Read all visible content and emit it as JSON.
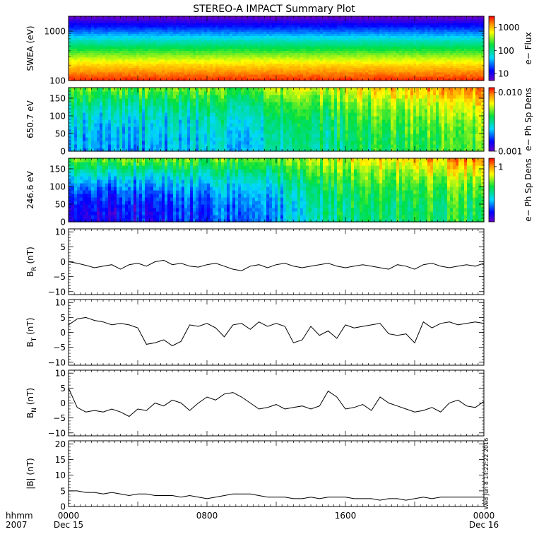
{
  "title": "STEREO-A IMPACT Summary Plot",
  "stamp": "Wed Jun  8 14:22:22 2016",
  "time_axis": {
    "unit_label": "hhmm",
    "year_label": "2007",
    "ticks": [
      {
        "hour": 0,
        "label": "0000",
        "date": "Dec 15"
      },
      {
        "hour": 8,
        "label": "0800",
        "date": ""
      },
      {
        "hour": 16,
        "label": "1600",
        "date": ""
      },
      {
        "hour": 24,
        "label": "0000",
        "date": "Dec 16"
      }
    ],
    "range_hours": [
      0,
      24
    ]
  },
  "chart_data": [
    {
      "type": "heatmap",
      "ylabel": "SWEA (eV)",
      "y_scale": "log",
      "ylim": [
        100,
        2000
      ],
      "yticks": [
        {
          "v": 100,
          "label": "100"
        },
        {
          "v": 1000,
          "label": "1000"
        }
      ],
      "colorbar": {
        "label": "e− Flux",
        "scale": "log",
        "range": [
          5,
          3000
        ],
        "ticks": [
          {
            "v": 10,
            "label": "10"
          },
          {
            "v": 100,
            "label": "100"
          },
          {
            "v": 1000,
            "label": "1000"
          }
        ]
      },
      "profile": [
        {
          "energy": 100,
          "flux": 2500
        },
        {
          "energy": 200,
          "flux": 900
        },
        {
          "energy": 400,
          "flux": 220
        },
        {
          "energy": 700,
          "flux": 60
        },
        {
          "energy": 1000,
          "flux": 25
        },
        {
          "energy": 1500,
          "flux": 10
        },
        {
          "energy": 2000,
          "flux": 5
        }
      ]
    },
    {
      "type": "heatmap",
      "ylabel": "650.7 eV",
      "ylim": [
        0,
        180
      ],
      "yticks": [
        {
          "v": 0,
          "label": "0"
        },
        {
          "v": 50,
          "label": "50"
        },
        {
          "v": 100,
          "label": "100"
        },
        {
          "v": 150,
          "label": "150"
        }
      ],
      "colorbar": {
        "label": "e− Ph Sp Dens",
        "scale": "log",
        "range": [
          0.001,
          0.012
        ],
        "ticks": [
          {
            "v": 0.001,
            "label": "0.001"
          },
          {
            "v": 0.01,
            "label": "0.010"
          }
        ]
      },
      "pattern": [
        {
          "hour": 0,
          "low": 0.3,
          "high": 0.62
        },
        {
          "hour": 6,
          "low": 0.32,
          "high": 0.62
        },
        {
          "hour": 12,
          "low": 0.4,
          "high": 0.66
        },
        {
          "hour": 18,
          "low": 0.55,
          "high": 0.8
        },
        {
          "hour": 24,
          "low": 0.6,
          "high": 0.9
        }
      ]
    },
    {
      "type": "heatmap",
      "ylabel": "246.6 eV",
      "ylim": [
        0,
        180
      ],
      "yticks": [
        {
          "v": 0,
          "label": "0"
        },
        {
          "v": 50,
          "label": "50"
        },
        {
          "v": 100,
          "label": "100"
        },
        {
          "v": 150,
          "label": "150"
        }
      ],
      "colorbar": {
        "label": "e− Ph Sp Dens",
        "scale": "log",
        "range": [
          0.3,
          1.2
        ],
        "ticks": [
          {
            "v": 1,
            "label": "1"
          }
        ]
      },
      "pattern": [
        {
          "hour": 0,
          "low": 0.1,
          "high": 0.62
        },
        {
          "hour": 4,
          "low": 0.12,
          "high": 0.64
        },
        {
          "hour": 8,
          "low": 0.22,
          "high": 0.64
        },
        {
          "hour": 12,
          "low": 0.28,
          "high": 0.64
        },
        {
          "hour": 15,
          "low": 0.45,
          "high": 0.7
        },
        {
          "hour": 18,
          "low": 0.52,
          "high": 0.78
        },
        {
          "hour": 24,
          "low": 0.55,
          "high": 0.9
        }
      ]
    },
    {
      "type": "line",
      "ylabel_main": "B",
      "ylabel_sub": "R",
      "ylabel_unit": " (nT)",
      "ylim": [
        -11,
        11
      ],
      "yticks": [
        {
          "v": -10,
          "label": "−10"
        },
        {
          "v": -5,
          "label": "−5"
        },
        {
          "v": 0,
          "label": "0"
        },
        {
          "v": 5,
          "label": "5"
        },
        {
          "v": 10,
          "label": "10"
        }
      ],
      "x": [
        0,
        0.5,
        1,
        1.5,
        2,
        2.5,
        3,
        3.5,
        4,
        4.5,
        5,
        5.5,
        6,
        6.5,
        7,
        7.5,
        8,
        8.5,
        9,
        9.5,
        10,
        10.5,
        11,
        11.5,
        12,
        12.5,
        13,
        13.5,
        14,
        14.5,
        15,
        15.5,
        16,
        16.5,
        17,
        17.5,
        18,
        18.5,
        19,
        19.5,
        20,
        20.5,
        21,
        21.5,
        22,
        22.5,
        23,
        23.5,
        24
      ],
      "y": [
        0,
        -0.5,
        -1.2,
        -2,
        -1.5,
        -1,
        -2.5,
        -1,
        -0.5,
        -1.5,
        0,
        0.5,
        -1,
        -0.5,
        -1.5,
        -1.8,
        -1,
        -0.5,
        -1.5,
        -2.5,
        -3,
        -1.5,
        -1,
        -2,
        -1,
        -0.5,
        -1.5,
        -2,
        -1.5,
        -1,
        -0.5,
        -1.5,
        -2,
        -1.5,
        -1,
        -1.5,
        -2,
        -2.5,
        -1,
        -1.5,
        -2.5,
        -1,
        -0.5,
        -1.5,
        -2,
        -1.5,
        -1,
        -1.5,
        -0.5
      ]
    },
    {
      "type": "line",
      "ylabel_main": "B",
      "ylabel_sub": "T",
      "ylabel_unit": " (nT)",
      "ylim": [
        -11,
        11
      ],
      "yticks": [
        {
          "v": -10,
          "label": "−10"
        },
        {
          "v": -5,
          "label": "−5"
        },
        {
          "v": 0,
          "label": "0"
        },
        {
          "v": 5,
          "label": "5"
        },
        {
          "v": 10,
          "label": "10"
        }
      ],
      "x": [
        0,
        0.5,
        1,
        1.5,
        2,
        2.5,
        3,
        3.5,
        4,
        4.5,
        5,
        5.5,
        6,
        6.5,
        7,
        7.5,
        8,
        8.5,
        9,
        9.5,
        10,
        10.5,
        11,
        11.5,
        12,
        12.5,
        13,
        13.5,
        14,
        14.5,
        15,
        15.5,
        16,
        16.5,
        17,
        17.5,
        18,
        18.5,
        19,
        19.5,
        20,
        20.5,
        21,
        21.5,
        22,
        22.5,
        23,
        23.5,
        24
      ],
      "y": [
        2.5,
        4.5,
        5,
        4,
        3.5,
        2.5,
        3,
        2.5,
        1.5,
        -4,
        -3.5,
        -2.5,
        -4.5,
        -3,
        2.5,
        2,
        3,
        1.5,
        -1.5,
        2.5,
        3,
        1,
        3.5,
        2,
        3,
        2,
        -3.5,
        -2.5,
        2,
        -1,
        0.5,
        -2,
        2.5,
        1.5,
        2,
        2.5,
        3,
        -0.5,
        -1,
        -0.5,
        -3.5,
        3.5,
        1.5,
        3,
        3.5,
        2.5,
        3,
        3.5,
        3
      ]
    },
    {
      "type": "line",
      "ylabel_main": "B",
      "ylabel_sub": "N",
      "ylabel_unit": " (nT)",
      "ylim": [
        -11,
        11
      ],
      "yticks": [
        {
          "v": -10,
          "label": "−10"
        },
        {
          "v": -5,
          "label": "−5"
        },
        {
          "v": 0,
          "label": "0"
        },
        {
          "v": 5,
          "label": "5"
        },
        {
          "v": 10,
          "label": "10"
        }
      ],
      "x": [
        0,
        0.5,
        1,
        1.5,
        2,
        2.5,
        3,
        3.5,
        4,
        4.5,
        5,
        5.5,
        6,
        6.5,
        7,
        7.5,
        8,
        8.5,
        9,
        9.5,
        10,
        10.5,
        11,
        11.5,
        12,
        12.5,
        13,
        13.5,
        14,
        14.5,
        15,
        15.5,
        16,
        16.5,
        17,
        17.5,
        18,
        18.5,
        19,
        19.5,
        20,
        20.5,
        21,
        21.5,
        22,
        22.5,
        23,
        23.5,
        24
      ],
      "y": [
        5,
        -1.5,
        -3,
        -2.5,
        -3,
        -2,
        -3,
        -4.5,
        -2,
        -2.5,
        0,
        -1,
        1,
        0,
        -2.5,
        0,
        2,
        1,
        3,
        3.5,
        2,
        0,
        -2,
        -1.5,
        -0.5,
        -2,
        -1.5,
        -1,
        -2,
        -1,
        4,
        2,
        -2,
        -1.5,
        -0.5,
        -2.5,
        2,
        0,
        -1,
        -2,
        -3,
        -2.5,
        -1.5,
        -3,
        0,
        1,
        -1,
        -1.5,
        0.5
      ]
    },
    {
      "type": "line",
      "ylabel_main": "|B| (nT)",
      "ylabel_sub": "",
      "ylabel_unit": "",
      "ylim": [
        0,
        21
      ],
      "yticks": [
        {
          "v": 0,
          "label": "0"
        },
        {
          "v": 5,
          "label": "5"
        },
        {
          "v": 10,
          "label": "10"
        },
        {
          "v": 15,
          "label": "15"
        },
        {
          "v": 20,
          "label": "20"
        }
      ],
      "x": [
        0,
        0.5,
        1,
        1.5,
        2,
        2.5,
        3,
        3.5,
        4,
        4.5,
        5,
        5.5,
        6,
        6.5,
        7,
        7.5,
        8,
        8.5,
        9,
        9.5,
        10,
        10.5,
        11,
        11.5,
        12,
        12.5,
        13,
        13.5,
        14,
        14.5,
        15,
        15.5,
        16,
        16.5,
        17,
        17.5,
        18,
        18.5,
        19,
        19.5,
        20,
        20.5,
        21,
        21.5,
        22,
        22.5,
        23,
        23.5,
        24
      ],
      "y": [
        5,
        5,
        4.5,
        4.5,
        4,
        4.5,
        4,
        3.5,
        4,
        4,
        3.5,
        3.5,
        3.5,
        3,
        3.5,
        3,
        2.5,
        3,
        3.5,
        4,
        4,
        4,
        3.5,
        3,
        3,
        3,
        2.5,
        2.5,
        3,
        2.5,
        3,
        3,
        3,
        2.5,
        2.5,
        2.5,
        2,
        2.5,
        2.5,
        2,
        2.5,
        3,
        2.5,
        3,
        3,
        3,
        3,
        3,
        3
      ]
    }
  ]
}
